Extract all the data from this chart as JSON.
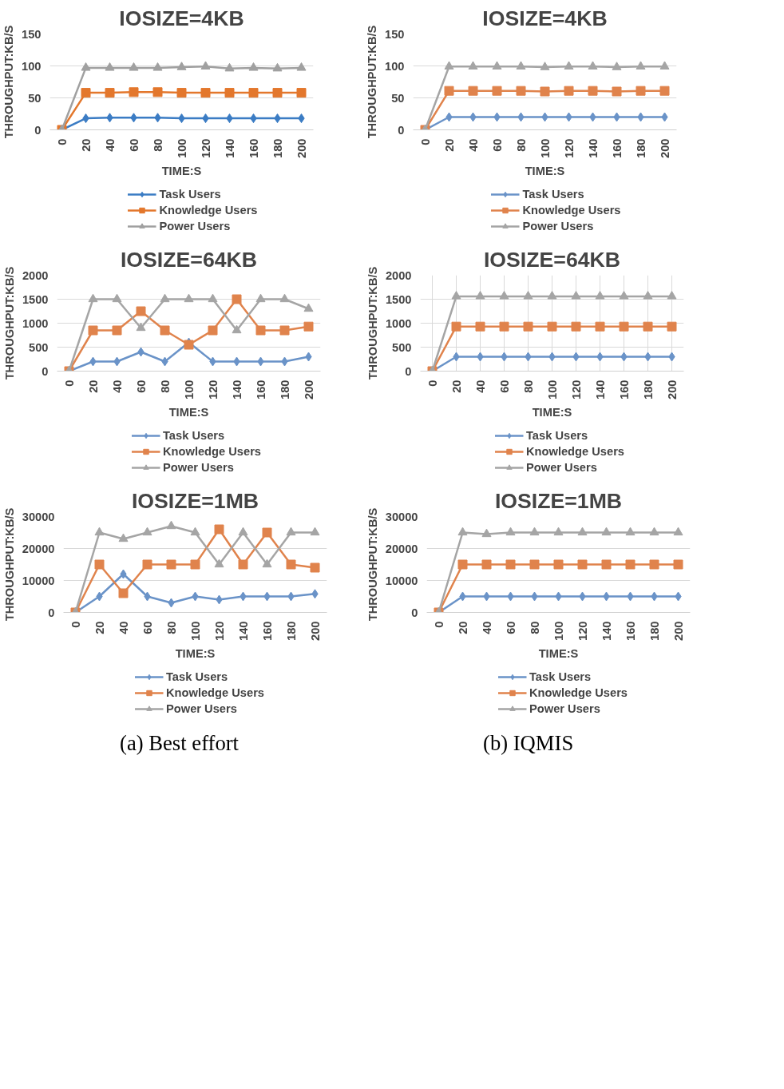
{
  "chart_data": [
    {
      "type": "line",
      "title": "IOSIZE=4KB",
      "xlabel": "TIME:S",
      "ylabel": "THROUGHPUT:KB/S",
      "categories": [
        "0",
        "20",
        "40",
        "60",
        "80",
        "100",
        "120",
        "140",
        "160",
        "180",
        "200"
      ],
      "ylim": [
        0,
        150
      ],
      "yticks": [
        0,
        50,
        100,
        150
      ],
      "grid": "y",
      "legend": "bottom",
      "series": [
        {
          "name": "Task Users",
          "color": "#3b7cc4",
          "marker": "diamond",
          "values": [
            0,
            18,
            19,
            19,
            19,
            18,
            18,
            18,
            18,
            18,
            18
          ]
        },
        {
          "name": "Knowledge Users",
          "color": "#e3772c",
          "marker": "square",
          "values": [
            0,
            58,
            58,
            59,
            59,
            58,
            58,
            58,
            58,
            58,
            58
          ]
        },
        {
          "name": "Power Users",
          "color": "#a0a0a0",
          "marker": "triangle",
          "values": [
            0,
            97,
            97,
            97,
            97,
            98,
            99,
            96,
            97,
            96,
            97
          ]
        }
      ]
    },
    {
      "type": "line",
      "title": "IOSIZE=4KB",
      "xlabel": "TIME:S",
      "ylabel": "THROUGHPUT:KB/S",
      "categories": [
        "0",
        "20",
        "40",
        "60",
        "80",
        "100",
        "120",
        "140",
        "160",
        "180",
        "200"
      ],
      "ylim": [
        0,
        150
      ],
      "yticks": [
        0,
        50,
        100,
        150
      ],
      "grid": "y",
      "legend": "bottom",
      "series": [
        {
          "name": "Task Users",
          "color": "#6a93c8",
          "marker": "diamond",
          "values": [
            0,
            20,
            20,
            20,
            20,
            20,
            20,
            20,
            20,
            20,
            20
          ]
        },
        {
          "name": "Knowledge Users",
          "color": "#e0834c",
          "marker": "square",
          "values": [
            0,
            61,
            61,
            61,
            61,
            60,
            61,
            61,
            60,
            61,
            61
          ]
        },
        {
          "name": "Power Users",
          "color": "#a5a5a5",
          "marker": "triangle",
          "values": [
            0,
            99,
            99,
            99,
            99,
            98,
            99,
            99,
            98,
            99,
            99
          ]
        }
      ]
    },
    {
      "type": "line",
      "title": "IOSIZE=64KB",
      "xlabel": "TIME:S",
      "ylabel": "THROUGHPUT:KB/S",
      "categories": [
        "0",
        "20",
        "40",
        "60",
        "80",
        "100",
        "120",
        "140",
        "160",
        "180",
        "200"
      ],
      "ylim": [
        0,
        2000
      ],
      "yticks": [
        0,
        500,
        1000,
        1500,
        2000
      ],
      "grid": "y",
      "legend": "bottom",
      "series": [
        {
          "name": "Task Users",
          "color": "#6a93c8",
          "marker": "diamond",
          "values": [
            0,
            200,
            200,
            400,
            200,
            600,
            200,
            200,
            200,
            200,
            300
          ]
        },
        {
          "name": "Knowledge Users",
          "color": "#e0834c",
          "marker": "square",
          "values": [
            0,
            850,
            850,
            1250,
            850,
            550,
            850,
            1500,
            850,
            850,
            930
          ]
        },
        {
          "name": "Power Users",
          "color": "#a5a5a5",
          "marker": "triangle",
          "values": [
            0,
            1500,
            1500,
            900,
            1500,
            1500,
            1500,
            850,
            1500,
            1500,
            1300
          ]
        }
      ]
    },
    {
      "type": "line",
      "title": "IOSIZE=64KB",
      "xlabel": "TIME:S",
      "ylabel": "THROUGHPUT:KB/S",
      "categories": [
        "0",
        "20",
        "40",
        "60",
        "80",
        "100",
        "120",
        "140",
        "160",
        "180",
        "200"
      ],
      "ylim": [
        0,
        2000
      ],
      "yticks": [
        0,
        500,
        1000,
        1500,
        2000
      ],
      "grid": true,
      "legend": "bottom",
      "series": [
        {
          "name": "Task Users",
          "color": "#6a93c8",
          "marker": "diamond",
          "values": [
            0,
            300,
            300,
            300,
            300,
            300,
            300,
            300,
            300,
            300,
            300
          ]
        },
        {
          "name": "Knowledge Users",
          "color": "#e0834c",
          "marker": "square",
          "values": [
            0,
            930,
            930,
            930,
            930,
            930,
            930,
            930,
            930,
            930,
            930
          ]
        },
        {
          "name": "Power Users",
          "color": "#a5a5a5",
          "marker": "triangle",
          "values": [
            0,
            1560,
            1560,
            1560,
            1560,
            1560,
            1560,
            1560,
            1560,
            1560,
            1560
          ]
        }
      ]
    },
    {
      "type": "line",
      "title": "IOSIZE=1MB",
      "xlabel": "TIME:S",
      "ylabel": "THROUGHPUT:KB/S",
      "categories": [
        "0",
        "20",
        "40",
        "60",
        "80",
        "100",
        "120",
        "140",
        "160",
        "180",
        "200"
      ],
      "ylim": [
        0,
        30000
      ],
      "yticks": [
        0,
        10000,
        20000,
        30000
      ],
      "grid": "y",
      "legend": "bottom",
      "annotations": [
        "(a) Best effort"
      ],
      "series": [
        {
          "name": "Task Users",
          "color": "#6a93c8",
          "marker": "diamond",
          "values": [
            0,
            5000,
            12000,
            5000,
            3000,
            5000,
            4000,
            5000,
            5000,
            5000,
            5800
          ]
        },
        {
          "name": "Knowledge Users",
          "color": "#e0834c",
          "marker": "square",
          "values": [
            0,
            15000,
            6000,
            15000,
            15000,
            15000,
            26000,
            15000,
            25000,
            15000,
            14000
          ]
        },
        {
          "name": "Power Users",
          "color": "#a5a5a5",
          "marker": "triangle",
          "values": [
            0,
            25000,
            23000,
            25000,
            27000,
            25000,
            15000,
            25000,
            15000,
            25000,
            25000
          ]
        }
      ]
    },
    {
      "type": "line",
      "title": "IOSIZE=1MB",
      "xlabel": "TIME:S",
      "ylabel": "THROUGHPUT:KB/S",
      "categories": [
        "0",
        "20",
        "40",
        "60",
        "80",
        "100",
        "120",
        "140",
        "160",
        "180",
        "200"
      ],
      "ylim": [
        0,
        30000
      ],
      "yticks": [
        0,
        10000,
        20000,
        30000
      ],
      "grid": "y",
      "legend": "bottom",
      "annotations": [
        "(b) IQMIS"
      ],
      "series": [
        {
          "name": "Task Users",
          "color": "#6a93c8",
          "marker": "diamond",
          "values": [
            0,
            5000,
            5000,
            5000,
            5000,
            5000,
            5000,
            5000,
            5000,
            5000,
            5000
          ]
        },
        {
          "name": "Knowledge Users",
          "color": "#e0834c",
          "marker": "square",
          "values": [
            0,
            15000,
            15000,
            15000,
            15000,
            15000,
            15000,
            15000,
            15000,
            15000,
            15000
          ]
        },
        {
          "name": "Power Users",
          "color": "#a5a5a5",
          "marker": "triangle",
          "values": [
            0,
            25000,
            24500,
            25000,
            25000,
            25000,
            25000,
            25000,
            25000,
            25000,
            25000
          ]
        }
      ]
    }
  ]
}
